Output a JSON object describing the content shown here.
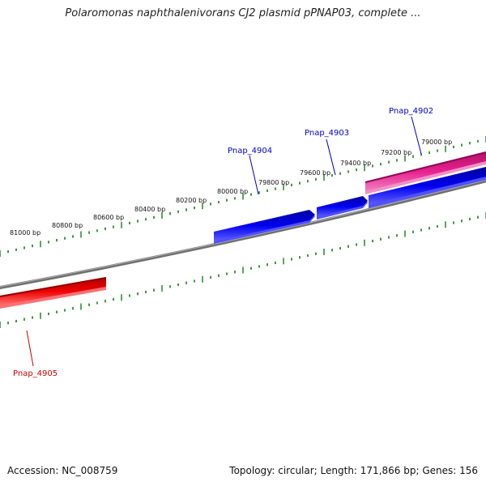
{
  "title": "Polaromonas naphthalenivorans CJ2 plasmid pPNAP03, complete ...",
  "footer": {
    "accession_label": "Accession:",
    "accession": "NC_008759",
    "summary": "Topology: circular; Length: 171,866 bp; Genes: 156"
  },
  "scale": {
    "unit": "bp",
    "tick_labels": [
      "81000 bp",
      "80800 bp",
      "80600 bp",
      "80400 bp",
      "80200 bp",
      "80000 bp",
      "79800 bp",
      "79600 bp",
      "79400 bp",
      "79200 bp",
      "79000 bp"
    ]
  },
  "genes": [
    {
      "name": "Pnap_4902",
      "strand": "reverse",
      "color": "#e8208f",
      "label_color": "#0000cc"
    },
    {
      "name": "Pnap_4903",
      "strand": "forward",
      "color": "#0000ee",
      "label_color": "#0000cc"
    },
    {
      "name": "Pnap_4904",
      "strand": "forward",
      "color": "#0000ee",
      "label_color": "#0000cc"
    },
    {
      "name": "Pnap_4905",
      "strand": "reverse",
      "color": "#ee0000",
      "label_color": "#cc0000"
    }
  ],
  "colors": {
    "backbone": "#808080",
    "ticks": "#1a7a1a",
    "forward": "#0000ee",
    "reverse_pink": "#e8208f",
    "reverse_red": "#ee0000"
  }
}
